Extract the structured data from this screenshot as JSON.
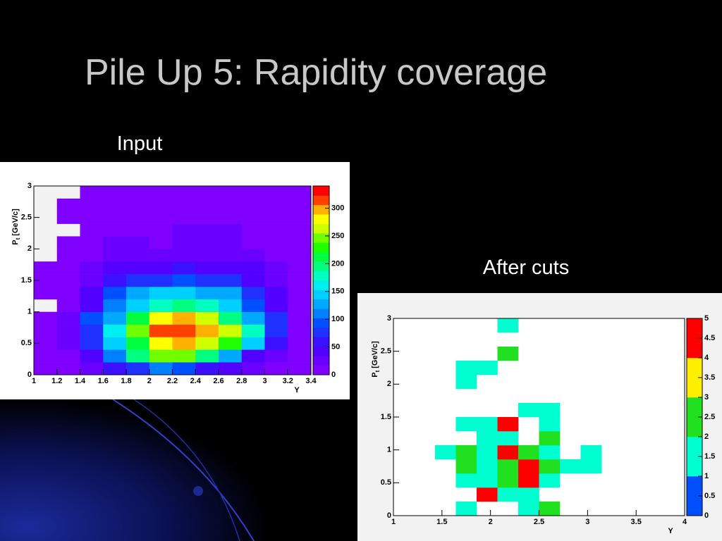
{
  "title": "Pile Up 5: Rapidity coverage",
  "chart_data": [
    {
      "type": "heatmap",
      "caption": "Input",
      "x_label": "Y",
      "y_label": "P",
      "y_label_sub": "t",
      "y_label_unit": "[GeV/c]",
      "xlim": [
        1,
        3.4
      ],
      "ylim": [
        0,
        3
      ],
      "zlim": [
        0,
        340
      ],
      "xticks": [
        1,
        1.2,
        1.4,
        1.6,
        1.8,
        2,
        2.2,
        2.4,
        2.6,
        2.8,
        3,
        3.2,
        3.4
      ],
      "yticks": [
        0,
        0.5,
        1,
        1.5,
        2,
        2.5,
        3
      ],
      "zticks": [
        0,
        50,
        100,
        150,
        200,
        250,
        300
      ],
      "palette": [
        "#8000ff",
        "#6a00ff",
        "#5200ff",
        "#3a10ff",
        "#2030ff",
        "#0050ff",
        "#0080ff",
        "#00a8ff",
        "#00d0ff",
        "#00f0f0",
        "#00ffc0",
        "#00ff80",
        "#00ff40",
        "#20ff00",
        "#70ff00",
        "#d0ff00",
        "#ffff00",
        "#ffb000",
        "#ff4000",
        "#ff0000"
      ],
      "z": [
        [
          5,
          10,
          30,
          60,
          70,
          110,
          100,
          60,
          35,
          20,
          10,
          5
        ],
        [
          5,
          15,
          50,
          110,
          190,
          250,
          240,
          190,
          120,
          50,
          25,
          10
        ],
        [
          5,
          20,
          70,
          150,
          220,
          280,
          300,
          270,
          230,
          150,
          60,
          15
        ],
        [
          5,
          25,
          80,
          160,
          250,
          320,
          320,
          300,
          260,
          170,
          80,
          15
        ],
        [
          5,
          25,
          90,
          130,
          220,
          280,
          300,
          260,
          200,
          130,
          70,
          15
        ],
        [
          null,
          15,
          50,
          110,
          150,
          180,
          190,
          170,
          150,
          90,
          50,
          10
        ],
        [
          5,
          10,
          40,
          100,
          130,
          150,
          140,
          130,
          120,
          70,
          35,
          5
        ],
        [
          5,
          10,
          30,
          60,
          80,
          80,
          90,
          80,
          70,
          50,
          30,
          5
        ],
        [
          5,
          10,
          25,
          40,
          50,
          50,
          60,
          50,
          40,
          35,
          25,
          5
        ],
        [
          null,
          10,
          15,
          30,
          30,
          25,
          30,
          30,
          30,
          20,
          10,
          5
        ],
        [
          null,
          10,
          15,
          25,
          25,
          15,
          20,
          20,
          20,
          15,
          10,
          5
        ],
        [
          null,
          null,
          10,
          10,
          10,
          10,
          25,
          25,
          25,
          10,
          10,
          5
        ],
        [
          null,
          10,
          10,
          10,
          10,
          10,
          10,
          10,
          10,
          10,
          10,
          5
        ],
        [
          null,
          10,
          10,
          10,
          10,
          10,
          10,
          10,
          10,
          10,
          10,
          5
        ],
        [
          null,
          null,
          10,
          10,
          10,
          10,
          10,
          10,
          10,
          10,
          10,
          5
        ]
      ]
    },
    {
      "type": "heatmap",
      "caption": "After cuts",
      "x_label": "Y",
      "y_label": "P",
      "y_label_sub": "t",
      "y_label_unit": "[GeV/c]",
      "xlim": [
        1,
        4
      ],
      "ylim": [
        0,
        3
      ],
      "zlim": [
        0,
        5
      ],
      "xticks": [
        1,
        1.5,
        2,
        2.5,
        3,
        3.5,
        4
      ],
      "yticks": [
        0,
        0.5,
        1,
        1.5,
        2,
        2.5,
        3
      ],
      "zticks": [
        0,
        0.5,
        1,
        1.5,
        2,
        2.5,
        3,
        3.5,
        4,
        4.5,
        5
      ],
      "palette": [
        "#0050ff",
        "#00ffd0",
        "#20e020",
        "#ffee00",
        "#ff0000"
      ],
      "z": [
        [
          null,
          null,
          null,
          1,
          null,
          null,
          1,
          2,
          null,
          null,
          null,
          null,
          null,
          null
        ],
        [
          null,
          null,
          null,
          null,
          5,
          1,
          1,
          null,
          null,
          null,
          null,
          null,
          null,
          null
        ],
        [
          null,
          null,
          null,
          1,
          1,
          2,
          5,
          1,
          null,
          null,
          null,
          null,
          null,
          null
        ],
        [
          null,
          null,
          null,
          2,
          1,
          2,
          5,
          2,
          1,
          1,
          null,
          null,
          null,
          null
        ],
        [
          null,
          null,
          1,
          2,
          1,
          5,
          2,
          1,
          null,
          1,
          null,
          null,
          null,
          null
        ],
        [
          null,
          null,
          null,
          null,
          1,
          1,
          null,
          2,
          null,
          null,
          null,
          null,
          null,
          null
        ],
        [
          null,
          null,
          null,
          1,
          1,
          5,
          null,
          1,
          null,
          null,
          null,
          null,
          null,
          null
        ],
        [
          null,
          null,
          null,
          null,
          null,
          null,
          1,
          1,
          null,
          null,
          null,
          null,
          null,
          null
        ],
        [
          null,
          null,
          null,
          null,
          null,
          null,
          null,
          null,
          null,
          null,
          null,
          null,
          null,
          null
        ],
        [
          null,
          null,
          null,
          1,
          null,
          null,
          null,
          null,
          null,
          null,
          null,
          null,
          null,
          null
        ],
        [
          null,
          null,
          null,
          1,
          1,
          null,
          null,
          null,
          null,
          null,
          null,
          null,
          null,
          null
        ],
        [
          null,
          null,
          null,
          null,
          null,
          2,
          null,
          null,
          null,
          null,
          null,
          null,
          null,
          null
        ],
        [
          null,
          null,
          null,
          null,
          null,
          null,
          null,
          null,
          null,
          null,
          null,
          null,
          null,
          null
        ],
        [
          null,
          null,
          null,
          null,
          null,
          1,
          null,
          null,
          null,
          null,
          null,
          null,
          null,
          null
        ]
      ]
    }
  ]
}
